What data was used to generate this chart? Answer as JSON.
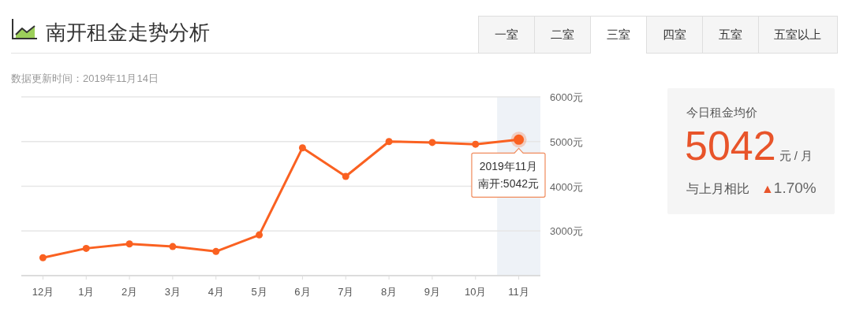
{
  "chart_data": [
    {
      "type": "line",
      "title": "南开租金走势分析",
      "subtitle": "数据更新时间：2019年11月14日",
      "categories": [
        "12月",
        "1月",
        "2月",
        "3月",
        "4月",
        "5月",
        "6月",
        "7月",
        "8月",
        "9月",
        "10月",
        "11月"
      ],
      "series": [
        {
          "color": "#fa6121",
          "values": [
            2400,
            2610,
            2710,
            2650,
            2540,
            2910,
            4860,
            4220,
            5000,
            4980,
            4940,
            5042
          ]
        }
      ],
      "ylim": [
        2000,
        6000
      ],
      "yticks": [
        {
          "value": 3000,
          "label": "3000元"
        },
        {
          "value": 4000,
          "label": "4000元"
        },
        {
          "value": 5000,
          "label": "5000元"
        },
        {
          "value": 6000,
          "label": "6000元"
        }
      ],
      "grid": "y",
      "marker": "circle",
      "line_style": "solid",
      "bands": [
        {
          "axis": "x",
          "from": "11月",
          "to": "11月",
          "color": "#eef2f7"
        }
      ],
      "annotations": [
        {
          "text": "2019年11月",
          "x": "11月",
          "y": 5042
        },
        "南开:5042元"
      ]
    },
    {
      "type": "other",
      "annotations": [
        "一室",
        "二室",
        "三室",
        "四室",
        "五室",
        "五室以上"
      ]
    },
    {
      "type": "other",
      "title": "今日租金均价",
      "annotations": [
        "5042",
        "元 / 月",
        "与上月相比",
        "▲1.70%"
      ]
    }
  ]
}
